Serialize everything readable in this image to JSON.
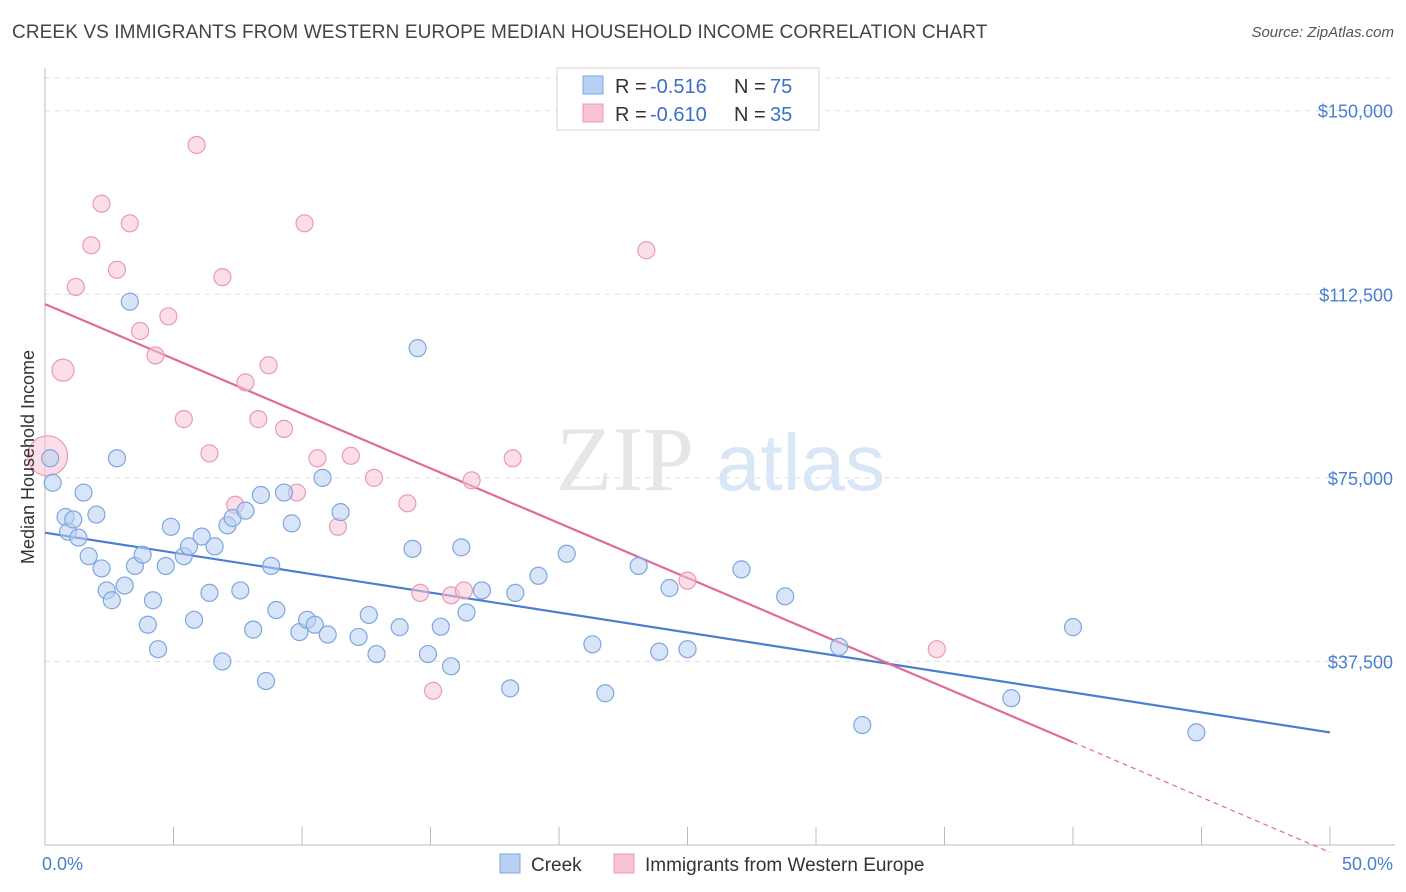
{
  "title": "CREEK VS IMMIGRANTS FROM WESTERN EUROPE MEDIAN HOUSEHOLD INCOME CORRELATION CHART",
  "source": "Source: ZipAtlas.com",
  "watermark": {
    "zip": "ZIP",
    "atlas": "atlas"
  },
  "colors": {
    "creek": "#4a7fcf",
    "immigrants": "#e06a96",
    "creek_fill": "#b8d0f2",
    "immigrants_fill": "#f7c3d4"
  },
  "legend": {
    "rows": [
      {
        "r_label": "R = ",
        "r_value": "-0.516",
        "n_label": "N = ",
        "n_value": "75"
      },
      {
        "r_label": "R = ",
        "r_value": "-0.610",
        "n_label": "N = ",
        "n_value": "35"
      }
    ]
  },
  "bottom_legend": [
    "Creek",
    "Immigrants from Western Europe"
  ],
  "chart_data": {
    "type": "scatter",
    "ylabel": "Median Household Income",
    "xlim": [
      0,
      50
    ],
    "ylim": [
      0,
      157500
    ],
    "x_tick_labels": [
      "0.0%",
      "50.0%"
    ],
    "y_ticks": [
      37500,
      75000,
      112500,
      150000
    ],
    "y_tick_labels": [
      "$37,500",
      "$75,000",
      "$112,500",
      "$150,000"
    ],
    "grid": true,
    "legend_placement": "top-center",
    "series": [
      {
        "name": "Creek",
        "trend": {
          "x": [
            0,
            50
          ],
          "y": [
            63800,
            23000
          ]
        },
        "points": [
          [
            0.3,
            74000
          ],
          [
            0.8,
            67000
          ],
          [
            0.9,
            64000
          ],
          [
            1.1,
            66500
          ],
          [
            1.3,
            62800
          ],
          [
            1.5,
            72000
          ],
          [
            1.7,
            59000
          ],
          [
            2.0,
            67500
          ],
          [
            2.2,
            56500
          ],
          [
            2.4,
            52000
          ],
          [
            2.6,
            50000
          ],
          [
            2.8,
            79000
          ],
          [
            3.1,
            53000
          ],
          [
            3.3,
            111000
          ],
          [
            3.5,
            57000
          ],
          [
            3.8,
            59300
          ],
          [
            4.0,
            45000
          ],
          [
            4.2,
            50000
          ],
          [
            4.4,
            40000
          ],
          [
            4.7,
            57000
          ],
          [
            4.9,
            65000
          ],
          [
            5.4,
            59000
          ],
          [
            5.6,
            61000
          ],
          [
            5.8,
            46000
          ],
          [
            6.1,
            63000
          ],
          [
            6.4,
            51500
          ],
          [
            6.6,
            61000
          ],
          [
            6.9,
            37500
          ],
          [
            7.1,
            65300
          ],
          [
            7.3,
            66800
          ],
          [
            7.6,
            52000
          ],
          [
            7.8,
            68300
          ],
          [
            8.1,
            44000
          ],
          [
            8.4,
            71500
          ],
          [
            8.6,
            33500
          ],
          [
            8.8,
            57000
          ],
          [
            9.0,
            48000
          ],
          [
            9.3,
            72000
          ],
          [
            9.6,
            65700
          ],
          [
            9.9,
            43500
          ],
          [
            10.2,
            46000
          ],
          [
            10.5,
            45000
          ],
          [
            10.8,
            75000
          ],
          [
            11.0,
            43000
          ],
          [
            11.5,
            68000
          ],
          [
            12.2,
            42500
          ],
          [
            12.6,
            47000
          ],
          [
            12.9,
            39000
          ],
          [
            13.8,
            44500
          ],
          [
            14.3,
            60500
          ],
          [
            14.5,
            101500
          ],
          [
            14.9,
            39000
          ],
          [
            15.4,
            44600
          ],
          [
            15.8,
            36500
          ],
          [
            16.2,
            60800
          ],
          [
            16.4,
            47500
          ],
          [
            18.1,
            32000
          ],
          [
            18.3,
            51500
          ],
          [
            19.2,
            55000
          ],
          [
            20.3,
            59500
          ],
          [
            21.3,
            41000
          ],
          [
            21.8,
            31000
          ],
          [
            23.1,
            57000
          ],
          [
            23.9,
            39500
          ],
          [
            24.3,
            52500
          ],
          [
            25.0,
            40000
          ],
          [
            27.1,
            56300
          ],
          [
            28.8,
            50800
          ],
          [
            30.9,
            40500
          ],
          [
            31.8,
            24500
          ],
          [
            37.6,
            30000
          ],
          [
            40.0,
            44500
          ],
          [
            44.8,
            23000
          ],
          [
            0.2,
            79000
          ],
          [
            17.0,
            52000
          ]
        ]
      },
      {
        "name": "Immigrants from Western Europe",
        "trend": {
          "x": [
            0,
            40
          ],
          "y": [
            110500,
            21000
          ]
        },
        "trend_dashed": {
          "x": [
            40,
            50
          ],
          "y": [
            21000,
            -1500
          ]
        },
        "points": [
          [
            0.1,
            79500
          ],
          [
            0.7,
            97000
          ],
          [
            1.2,
            114000
          ],
          [
            1.8,
            122500
          ],
          [
            2.2,
            131000
          ],
          [
            2.8,
            117500
          ],
          [
            3.3,
            127000
          ],
          [
            3.7,
            105000
          ],
          [
            4.3,
            100000
          ],
          [
            4.8,
            108000
          ],
          [
            5.4,
            87000
          ],
          [
            5.9,
            143000
          ],
          [
            6.4,
            80000
          ],
          [
            6.9,
            116000
          ],
          [
            7.4,
            69500
          ],
          [
            7.8,
            94500
          ],
          [
            8.3,
            87000
          ],
          [
            8.7,
            98000
          ],
          [
            9.3,
            85000
          ],
          [
            9.8,
            72000
          ],
          [
            10.1,
            127000
          ],
          [
            10.6,
            79000
          ],
          [
            11.4,
            65000
          ],
          [
            11.9,
            79500
          ],
          [
            12.8,
            75000
          ],
          [
            14.1,
            69800
          ],
          [
            14.6,
            51500
          ],
          [
            15.1,
            31500
          ],
          [
            15.8,
            51000
          ],
          [
            16.3,
            52000
          ],
          [
            16.6,
            74500
          ],
          [
            18.2,
            79000
          ],
          [
            23.4,
            121500
          ],
          [
            25.0,
            54000
          ],
          [
            34.7,
            40000
          ]
        ]
      }
    ]
  }
}
